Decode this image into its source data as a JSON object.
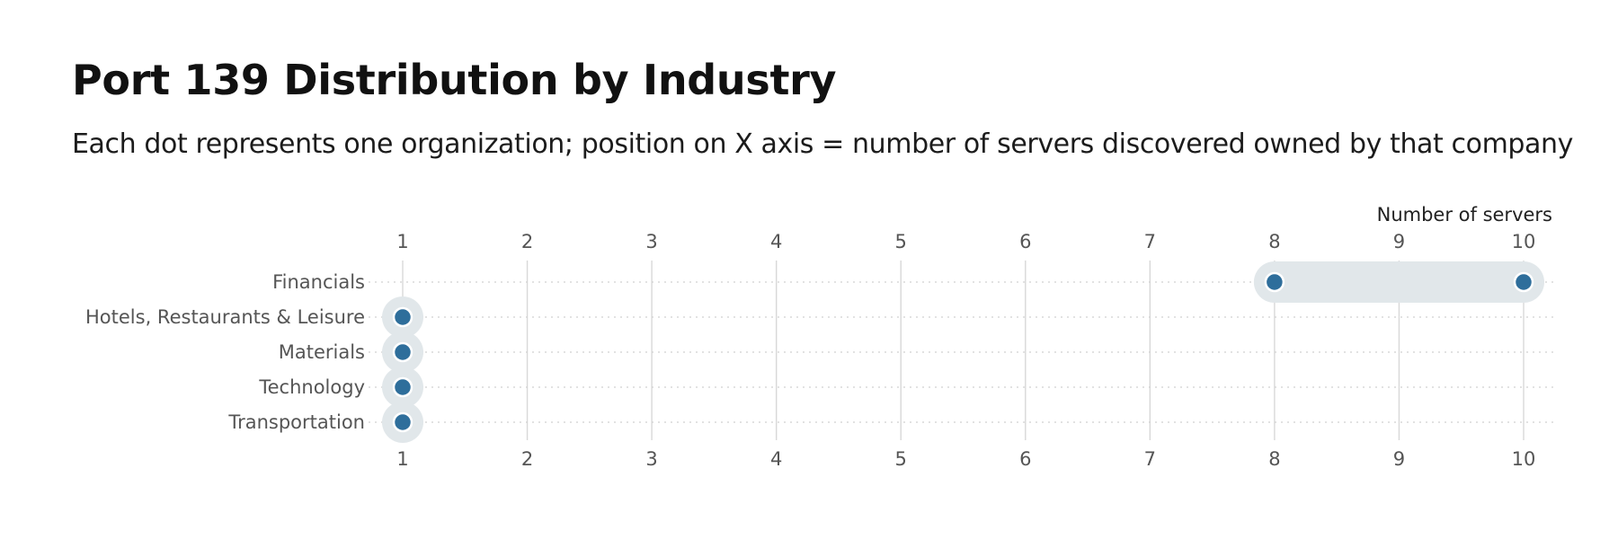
{
  "title": "Port 139 Distribution by Industry",
  "subtitle": "Each dot represents one organization; position on X axis = number of servers discovered owned by that company",
  "chart_data": {
    "type": "scatter",
    "subtype": "dot-range",
    "x_axis_title": "Number of servers",
    "xlim": [
      1,
      10
    ],
    "x_ticks": [
      1,
      2,
      3,
      4,
      5,
      6,
      7,
      8,
      9,
      10
    ],
    "categories": [
      "Financials",
      "Hotels, Restaurants & Leisure",
      "Materials",
      "Technology",
      "Transportation"
    ],
    "series": [
      {
        "category": "Financials",
        "values": [
          8,
          10
        ]
      },
      {
        "category": "Hotels, Restaurants & Leisure",
        "values": [
          1
        ]
      },
      {
        "category": "Materials",
        "values": [
          1
        ]
      },
      {
        "category": "Technology",
        "values": [
          1
        ]
      },
      {
        "category": "Transportation",
        "values": [
          1
        ]
      }
    ],
    "grid": true,
    "colors": {
      "dot": "#2e6e9b",
      "range": "#e1e7ea",
      "grid": "#d8d8d8"
    }
  }
}
